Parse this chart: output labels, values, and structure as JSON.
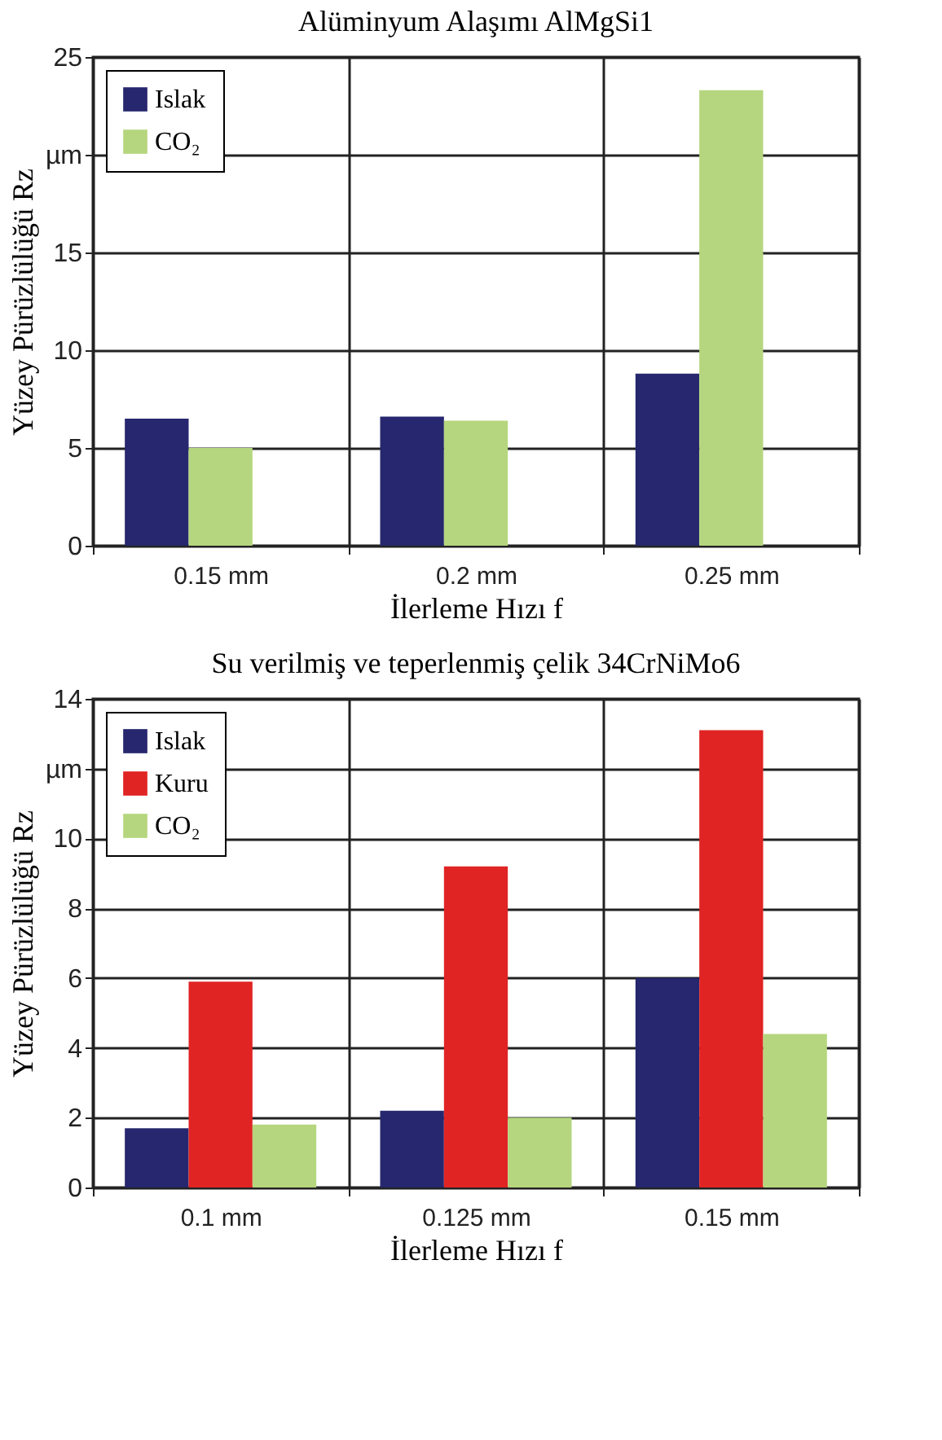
{
  "chart_data": [
    {
      "type": "bar",
      "title": "Alüminyum Alaşımı AlMgSi1",
      "xlabel": "İlerleme Hızı f",
      "ylabel": "Yüzey Pürüzlülüğü Rz",
      "categories": [
        "0.15 mm",
        "0.2 mm",
        "0.25 mm"
      ],
      "series": [
        {
          "name": "Islak",
          "color": "#26276e",
          "values": [
            6.5,
            6.6,
            8.8
          ]
        },
        {
          "name": "CO₂",
          "color": "#b5d67e",
          "values": [
            5.0,
            6.4,
            23.3
          ]
        }
      ],
      "ylim": [
        0,
        25
      ],
      "yticks": [
        0,
        5,
        10,
        15,
        {
          "value": 20,
          "label": "µm"
        },
        25
      ],
      "grid": true,
      "legend": "top left"
    },
    {
      "type": "bar",
      "title": "Su verilmiş ve teperlenmiş çelik 34CrNiMo6",
      "xlabel": "İlerleme Hızı f",
      "ylabel": "Yüzey Pürüzlülüğü Rz",
      "categories": [
        "0.1 mm",
        "0.125 mm",
        "0.15 mm"
      ],
      "series": [
        {
          "name": "Islak",
          "color": "#26276e",
          "values": [
            1.7,
            2.2,
            6.0
          ]
        },
        {
          "name": "Kuru",
          "color": "#e02424",
          "values": [
            5.9,
            9.2,
            13.1
          ]
        },
        {
          "name": "CO₂",
          "color": "#b5d67e",
          "values": [
            1.8,
            2.0,
            4.4
          ]
        }
      ],
      "ylim": [
        0,
        14
      ],
      "yticks": [
        0,
        2,
        4,
        6,
        8,
        10,
        {
          "value": 12,
          "label": "µm"
        },
        14
      ],
      "grid": true,
      "legend": "top left"
    }
  ]
}
